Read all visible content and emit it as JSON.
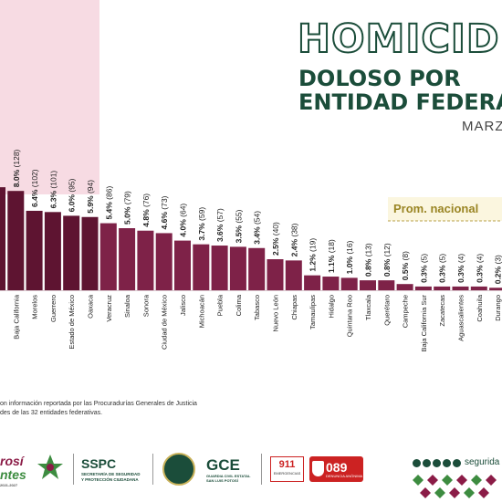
{
  "header": {
    "title_line1": "HOMICID",
    "title_line2": "DOLOSO POR",
    "title_line3": "ENTIDAD FEDERAT",
    "month": "MARZ"
  },
  "avg_label": "Prom. nacional",
  "chart_data": {
    "type": "bar",
    "colors": {
      "top_bars": "#5e1431",
      "bars": "#7e2248",
      "highlight": "#f7dbe3",
      "avg_band": "#fbf6df",
      "avg_line": "#b8a14a"
    },
    "bars": [
      {
        "state": "",
        "pct": 8.3,
        "label": "",
        "count": ""
      },
      {
        "state": "Baja California",
        "pct": 8.0,
        "label": "8.0%",
        "count": "(128)"
      },
      {
        "state": "Morelos",
        "pct": 6.4,
        "label": "6.4%",
        "count": "(102)"
      },
      {
        "state": "Guerrero",
        "pct": 6.3,
        "label": "6.3%",
        "count": "(101)"
      },
      {
        "state": "Estado de México",
        "pct": 6.0,
        "label": "6.0%",
        "count": "(95)"
      },
      {
        "state": "Oaxaca",
        "pct": 5.9,
        "label": "5.9%",
        "count": "(94)"
      },
      {
        "state": "Veracruz",
        "pct": 5.4,
        "label": "5.4%",
        "count": "(86)"
      },
      {
        "state": "Sinaloa",
        "pct": 5.0,
        "label": "5.0%",
        "count": "(79)"
      },
      {
        "state": "Sonora",
        "pct": 4.8,
        "label": "4.8%",
        "count": "(76)"
      },
      {
        "state": "Ciudad de México",
        "pct": 4.6,
        "label": "4.6%",
        "count": "(73)"
      },
      {
        "state": "Jalisco",
        "pct": 4.0,
        "label": "4.0%",
        "count": "(64)"
      },
      {
        "state": "Michoacán",
        "pct": 3.7,
        "label": "3.7%",
        "count": "(59)"
      },
      {
        "state": "Puebla",
        "pct": 3.6,
        "label": "3.6%",
        "count": "(57)"
      },
      {
        "state": "Colima",
        "pct": 3.5,
        "label": "3.5%",
        "count": "(55)"
      },
      {
        "state": "Tabasco",
        "pct": 3.4,
        "label": "3.4%",
        "count": "(54)"
      },
      {
        "state": "Nuevo León",
        "pct": 2.5,
        "label": "2.5%",
        "count": "(40)"
      },
      {
        "state": "Chiapas",
        "pct": 2.4,
        "label": "2.4%",
        "count": "(38)"
      },
      {
        "state": "Tamaulipas",
        "pct": 1.2,
        "label": "1.2%",
        "count": "(19)"
      },
      {
        "state": "Hidalgo",
        "pct": 1.1,
        "label": "1.1%",
        "count": "(18)"
      },
      {
        "state": "Quintana Roo",
        "pct": 1.0,
        "label": "1.0%",
        "count": "(16)"
      },
      {
        "state": "Tlaxcala",
        "pct": 0.8,
        "label": "0.8%",
        "count": "(13)"
      },
      {
        "state": "Querétaro",
        "pct": 0.8,
        "label": "0.8%",
        "count": "(12)"
      },
      {
        "state": "Campeche",
        "pct": 0.5,
        "label": "0.5%",
        "count": "(8)"
      },
      {
        "state": "Baja California Sur",
        "pct": 0.3,
        "label": "0.3%",
        "count": "(5)"
      },
      {
        "state": "Zacatecas",
        "pct": 0.3,
        "label": "0.3%",
        "count": "(5)"
      },
      {
        "state": "Aguascalientes",
        "pct": 0.3,
        "label": "0.3%",
        "count": "(4)"
      },
      {
        "state": "Coahuila",
        "pct": 0.3,
        "label": "0.3%",
        "count": "(4)"
      },
      {
        "state": "Durango",
        "pct": 0.2,
        "label": "0.2%",
        "count": "(3)"
      }
    ]
  },
  "footnote": {
    "line1": "on información reportada por las  Procuradurías Generales de Justicia",
    "line2": "des de las 32 entidades federativas."
  },
  "footer": {
    "brand_line1": "rosí",
    "brand_line2": "ntes",
    "brand_line3": "2021-2027",
    "sspc": "SSPC",
    "sspc_sub1": "SECRETARÍA DE SEGURIDAD",
    "sspc_sub2": "Y PROTECCIÓN CIUDADANA",
    "gce": "GCE",
    "gce_sub1": "GUARDIA CIVIL ESTATAL",
    "gce_sub2": "SAN LUIS POTOSÍ",
    "n911": "911",
    "n911_sub": "EMERGENCIAS",
    "n089": "089",
    "n089_sub": "DENUNCIA ANÓNIMA",
    "website": "segurida"
  }
}
